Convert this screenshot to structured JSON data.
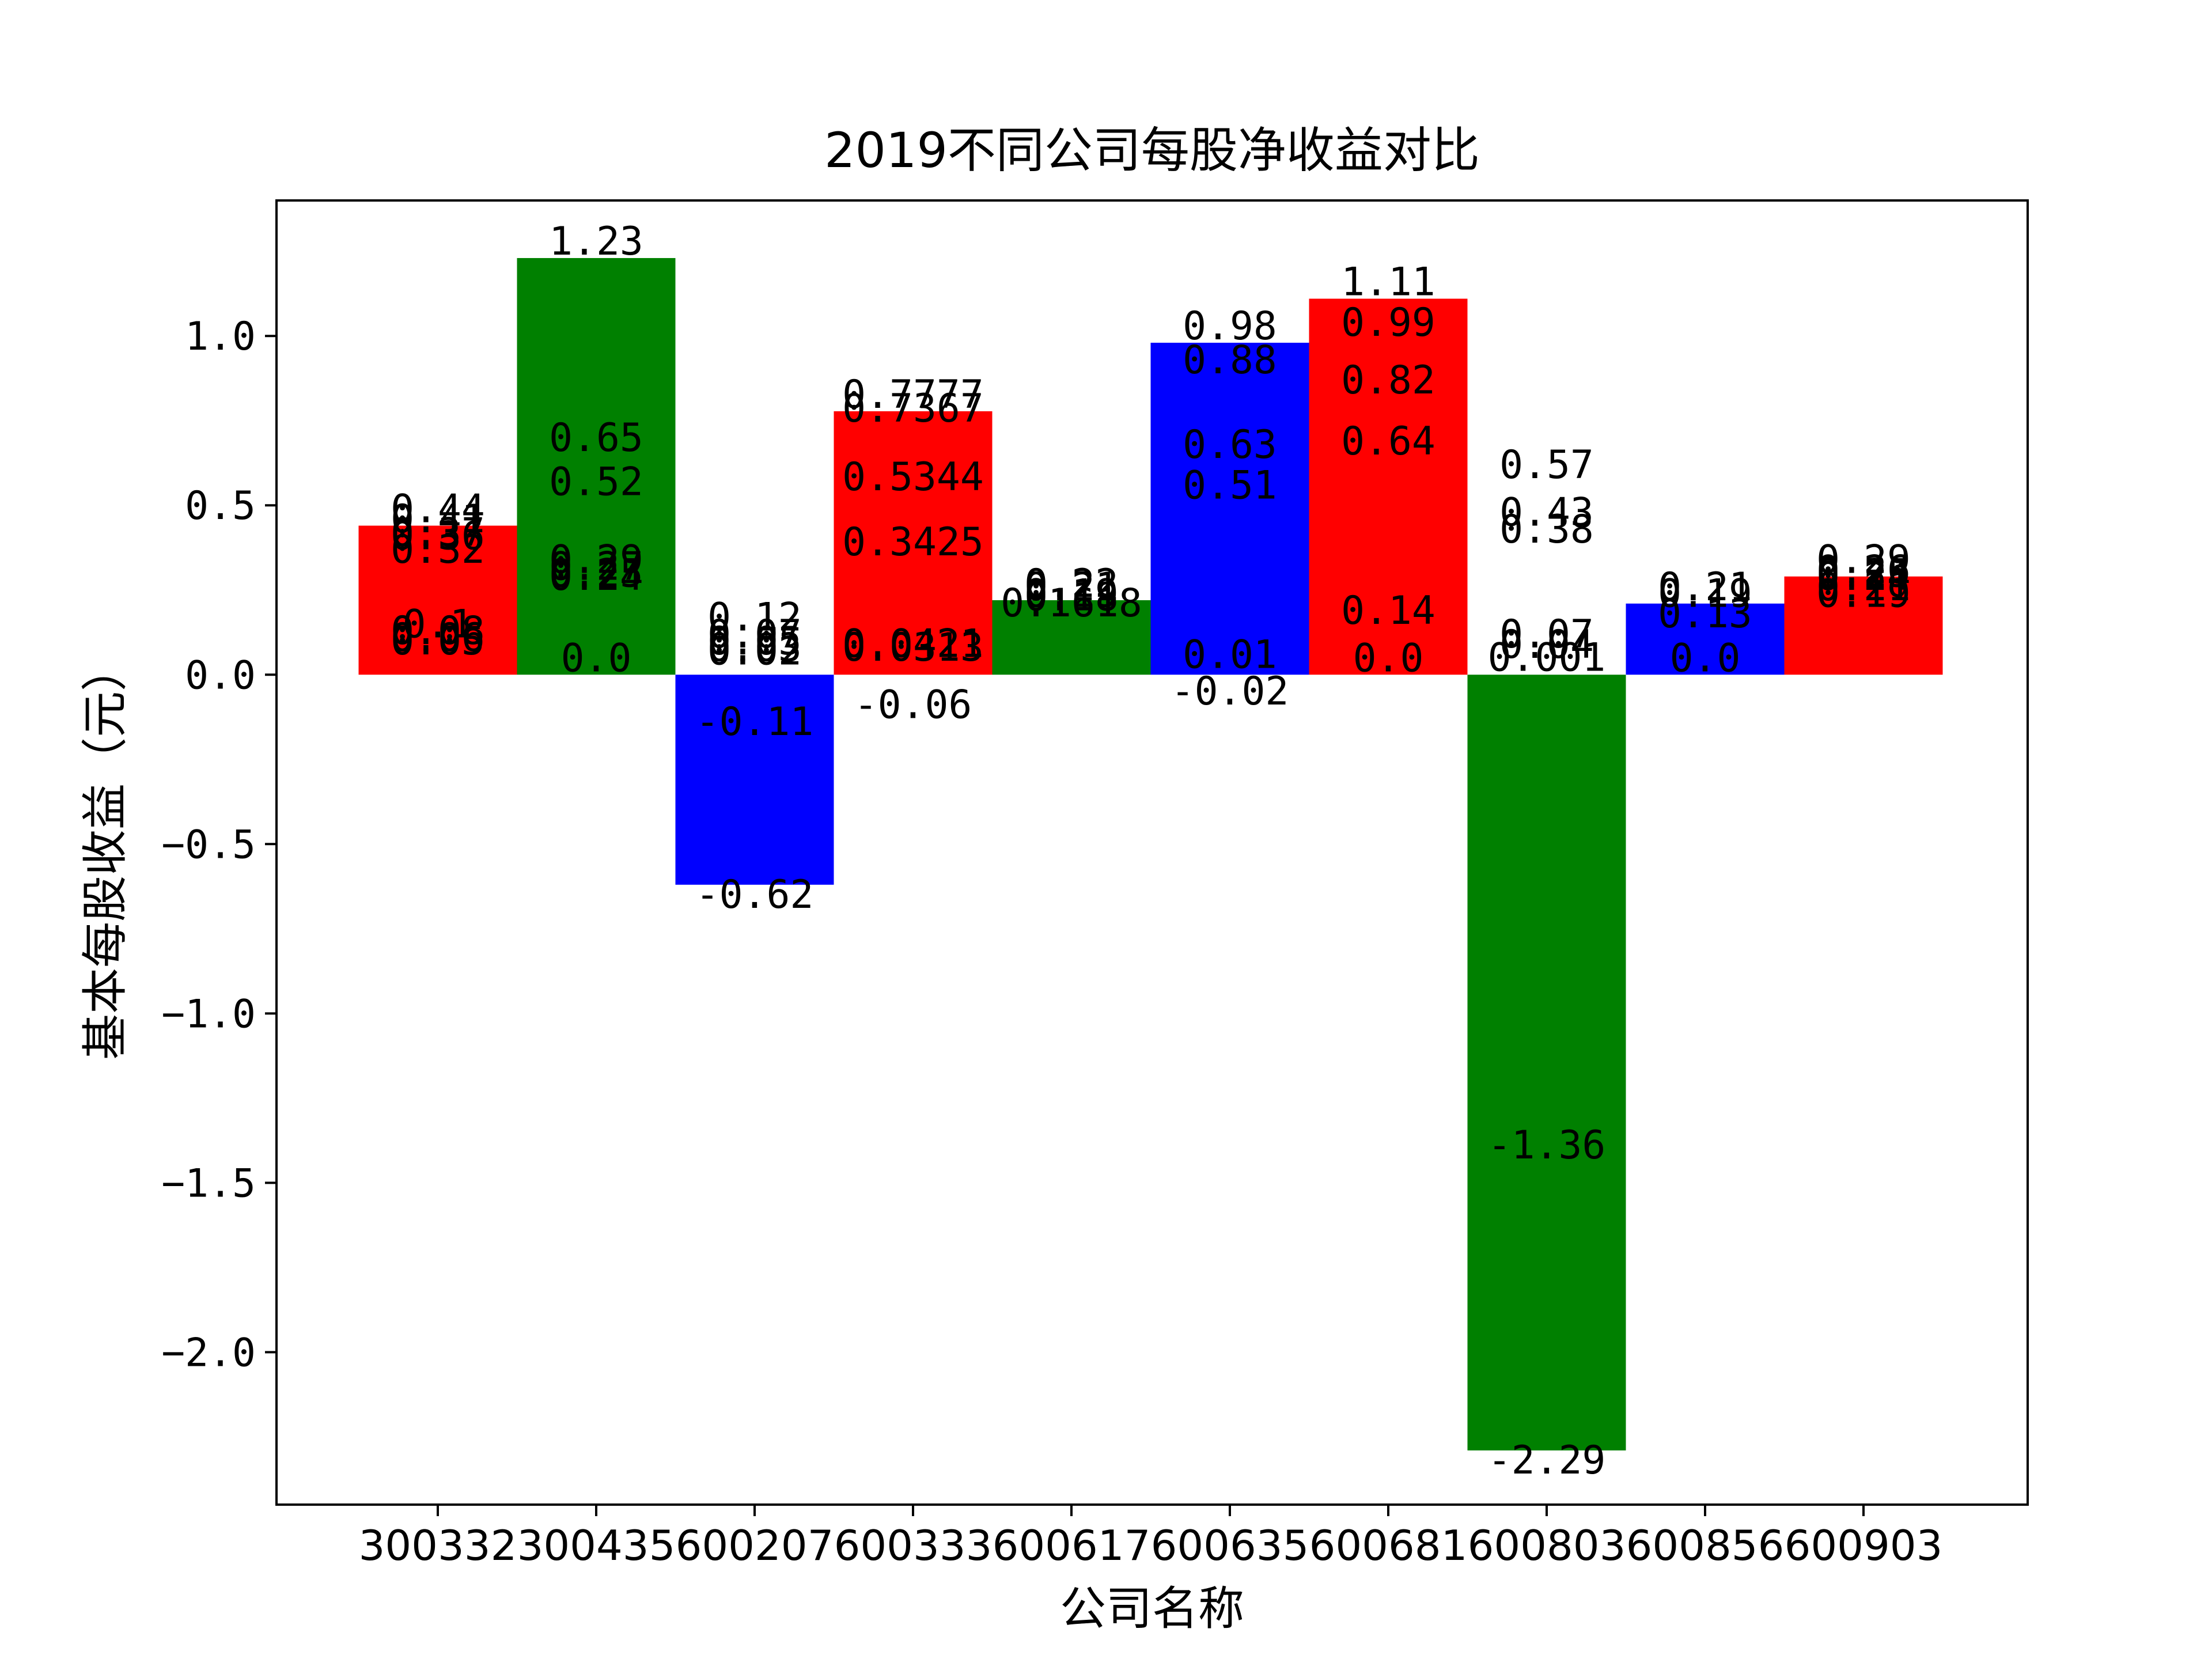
{
  "chart_data": {
    "type": "bar",
    "title": "2019不同公司每股净收益对比",
    "xlabel": "公司名称",
    "ylabel": "基本每股收益（元）",
    "ylim": [
      -2.45,
      1.4
    ],
    "yticks": [
      -2.0,
      -1.5,
      -1.0,
      -0.5,
      0.0,
      0.5,
      1.0
    ],
    "ytick_labels": [
      "−2.0",
      "−1.5",
      "−1.0",
      "−0.5",
      "0.0",
      "0.5",
      "1.0"
    ],
    "grid": false,
    "categories": [
      "300332",
      "300435",
      "600207",
      "600333",
      "600617",
      "600635",
      "600681",
      "600803",
      "600856",
      "600903"
    ],
    "bar_colors": [
      "#ff0000",
      "#008000",
      "#0000ff",
      "#ff0000",
      "#008000",
      "#0000ff",
      "#ff0000",
      "#008000",
      "#0000ff",
      "#ff0000"
    ],
    "bar_values": [
      0.44,
      1.23,
      -0.62,
      0.7777,
      0.22,
      0.98,
      1.11,
      -2.29,
      0.21,
      0.29
    ],
    "value_labels": [
      [
        "0.44",
        "0.41",
        "0.37",
        "0.36",
        "0.32",
        "0.1",
        "0.08",
        "0.06",
        "0.05"
      ],
      [
        "1.23",
        "0.65",
        "0.52",
        "0.29",
        "0.27",
        "0.25",
        "0.24",
        "0.0"
      ],
      [
        "0.12",
        "0.07",
        "0.05",
        "0.03",
        "0.02",
        "-0.11",
        "-0.62"
      ],
      [
        "0.7777",
        "0.7367",
        "0.5344",
        "0.3425",
        "0.0421",
        "0.0313",
        "-0.06"
      ],
      [
        "0.22",
        "0.21",
        "0.19",
        "0.18",
        "0.1618"
      ],
      [
        "0.98",
        "0.88",
        "0.63",
        "0.51",
        "0.01",
        "-0.02"
      ],
      [
        "1.11",
        "0.99",
        "0.82",
        "0.64",
        "0.14",
        "0.0"
      ],
      [
        "0.57",
        "0.43",
        "0.38",
        "0.07",
        "0.04",
        "0.001",
        "-1.36",
        "-2.29"
      ],
      [
        "0.21",
        "0.19",
        "0.13",
        "0.0"
      ],
      [
        "0.29",
        "0.26",
        "0.25",
        "0.24",
        "0.21",
        "0.19"
      ]
    ]
  }
}
